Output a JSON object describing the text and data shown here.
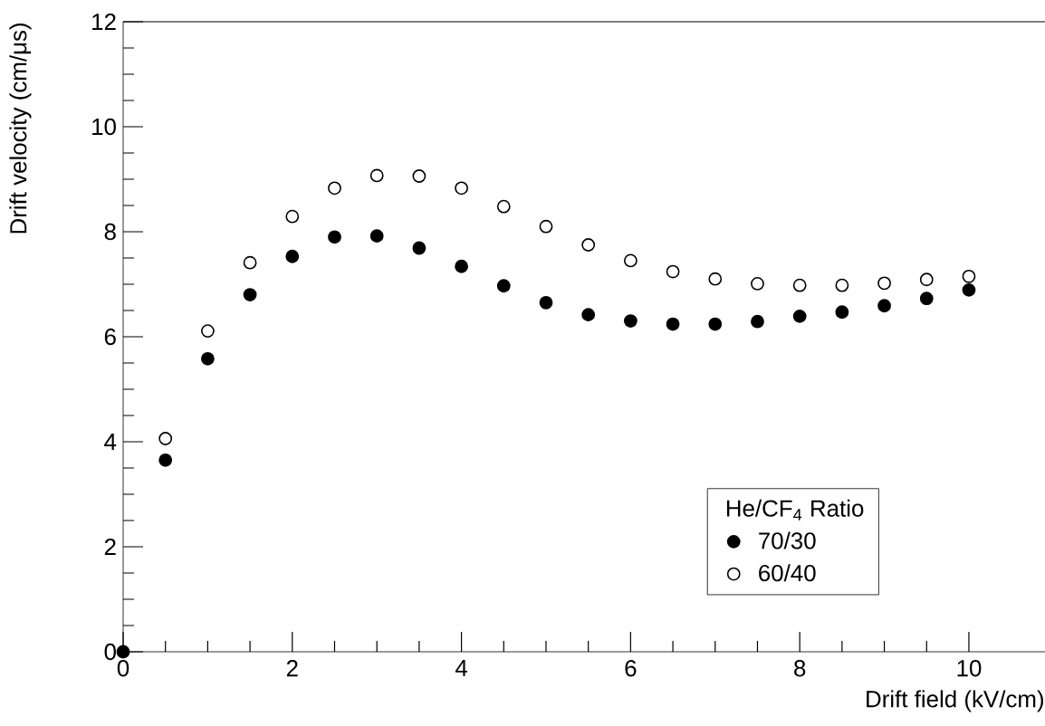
{
  "chart_data": {
    "type": "scatter",
    "xlabel": "Drift field (kV/cm)",
    "ylabel": "Drift velocity (cm/μs)",
    "legend_title": "He/CF$_{4}$ Ratio",
    "xlim": [
      0,
      10.9
    ],
    "ylim": [
      0,
      12
    ],
    "xticks": [
      0,
      2,
      4,
      6,
      8,
      10
    ],
    "yticks": [
      0,
      2,
      4,
      6,
      8,
      10,
      12
    ],
    "legend": "bottom right",
    "grid": false,
    "series": [
      {
        "name": "70/30",
        "color": "#000000",
        "marker": "circle",
        "x": [
          0,
          0.5,
          1,
          1.5,
          2,
          2.5,
          3,
          3.5,
          4,
          4.5,
          5,
          5.5,
          6,
          6.5,
          7,
          7.5,
          8,
          8.5,
          9,
          9.5,
          10
        ],
        "values": [
          0,
          3.65,
          5.58,
          6.8,
          7.53,
          7.9,
          7.92,
          7.69,
          7.34,
          6.97,
          6.65,
          6.42,
          6.3,
          6.24,
          6.24,
          6.29,
          6.39,
          6.47,
          6.59,
          6.73,
          6.89
        ]
      },
      {
        "name": "60/40",
        "color": "#000000",
        "marker": "open circle",
        "x": [
          0.5,
          1,
          1.5,
          2,
          2.5,
          3,
          3.5,
          4,
          4.5,
          5,
          5.5,
          6,
          6.5,
          7,
          7.5,
          8,
          8.5,
          9,
          9.5,
          10
        ],
        "values": [
          4.06,
          6.11,
          7.41,
          8.29,
          8.83,
          9.07,
          9.06,
          8.83,
          8.48,
          8.1,
          7.75,
          7.45,
          7.24,
          7.1,
          7.01,
          6.98,
          6.98,
          7.02,
          7.09,
          7.15
        ]
      }
    ]
  }
}
